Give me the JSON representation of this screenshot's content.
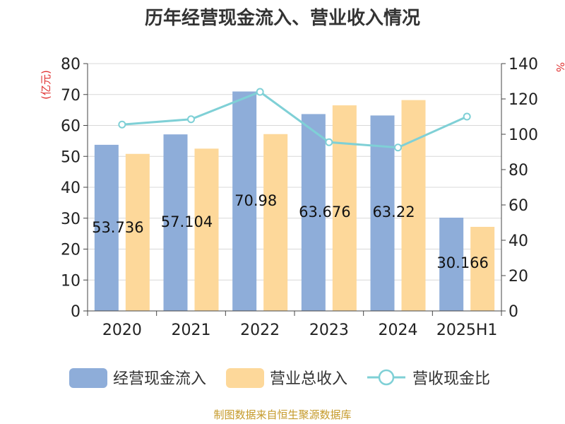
{
  "chart_data": {
    "type": "bar",
    "title": "历年经营现金流入、营业收入情况",
    "categories": [
      "2020",
      "2021",
      "2022",
      "2023",
      "2024",
      "2025H1"
    ],
    "series": [
      {
        "name": "经营现金流入",
        "type": "bar",
        "axis": "left",
        "color": "#8eadd9",
        "values": [
          53.736,
          57.104,
          70.98,
          63.676,
          63.22,
          30.166
        ]
      },
      {
        "name": "营业总收入",
        "type": "bar",
        "axis": "left",
        "color": "#fdd89a",
        "values": [
          50.8,
          52.5,
          57.2,
          66.5,
          68.2,
          27.2
        ]
      },
      {
        "name": "营收现金比",
        "type": "line",
        "axis": "right",
        "color": "#7fd0d6",
        "values": [
          105.5,
          108.5,
          124.0,
          95.5,
          92.5,
          110.0
        ]
      }
    ],
    "bar_labels": [
      "53.736",
      "57.104",
      "70.98",
      "63.676",
      "63.22",
      "30.166"
    ],
    "ylabel": "(亿元)",
    "y2label": "%",
    "ylim": [
      0,
      80
    ],
    "y2lim": [
      0,
      140
    ],
    "yticks": [
      0,
      10,
      20,
      30,
      40,
      50,
      60,
      70,
      80
    ],
    "y2ticks": [
      0,
      20,
      40,
      60,
      80,
      100,
      120,
      140
    ],
    "grid": true,
    "legend": "bottom"
  },
  "source": "制图数据来自恒生聚源数据库"
}
